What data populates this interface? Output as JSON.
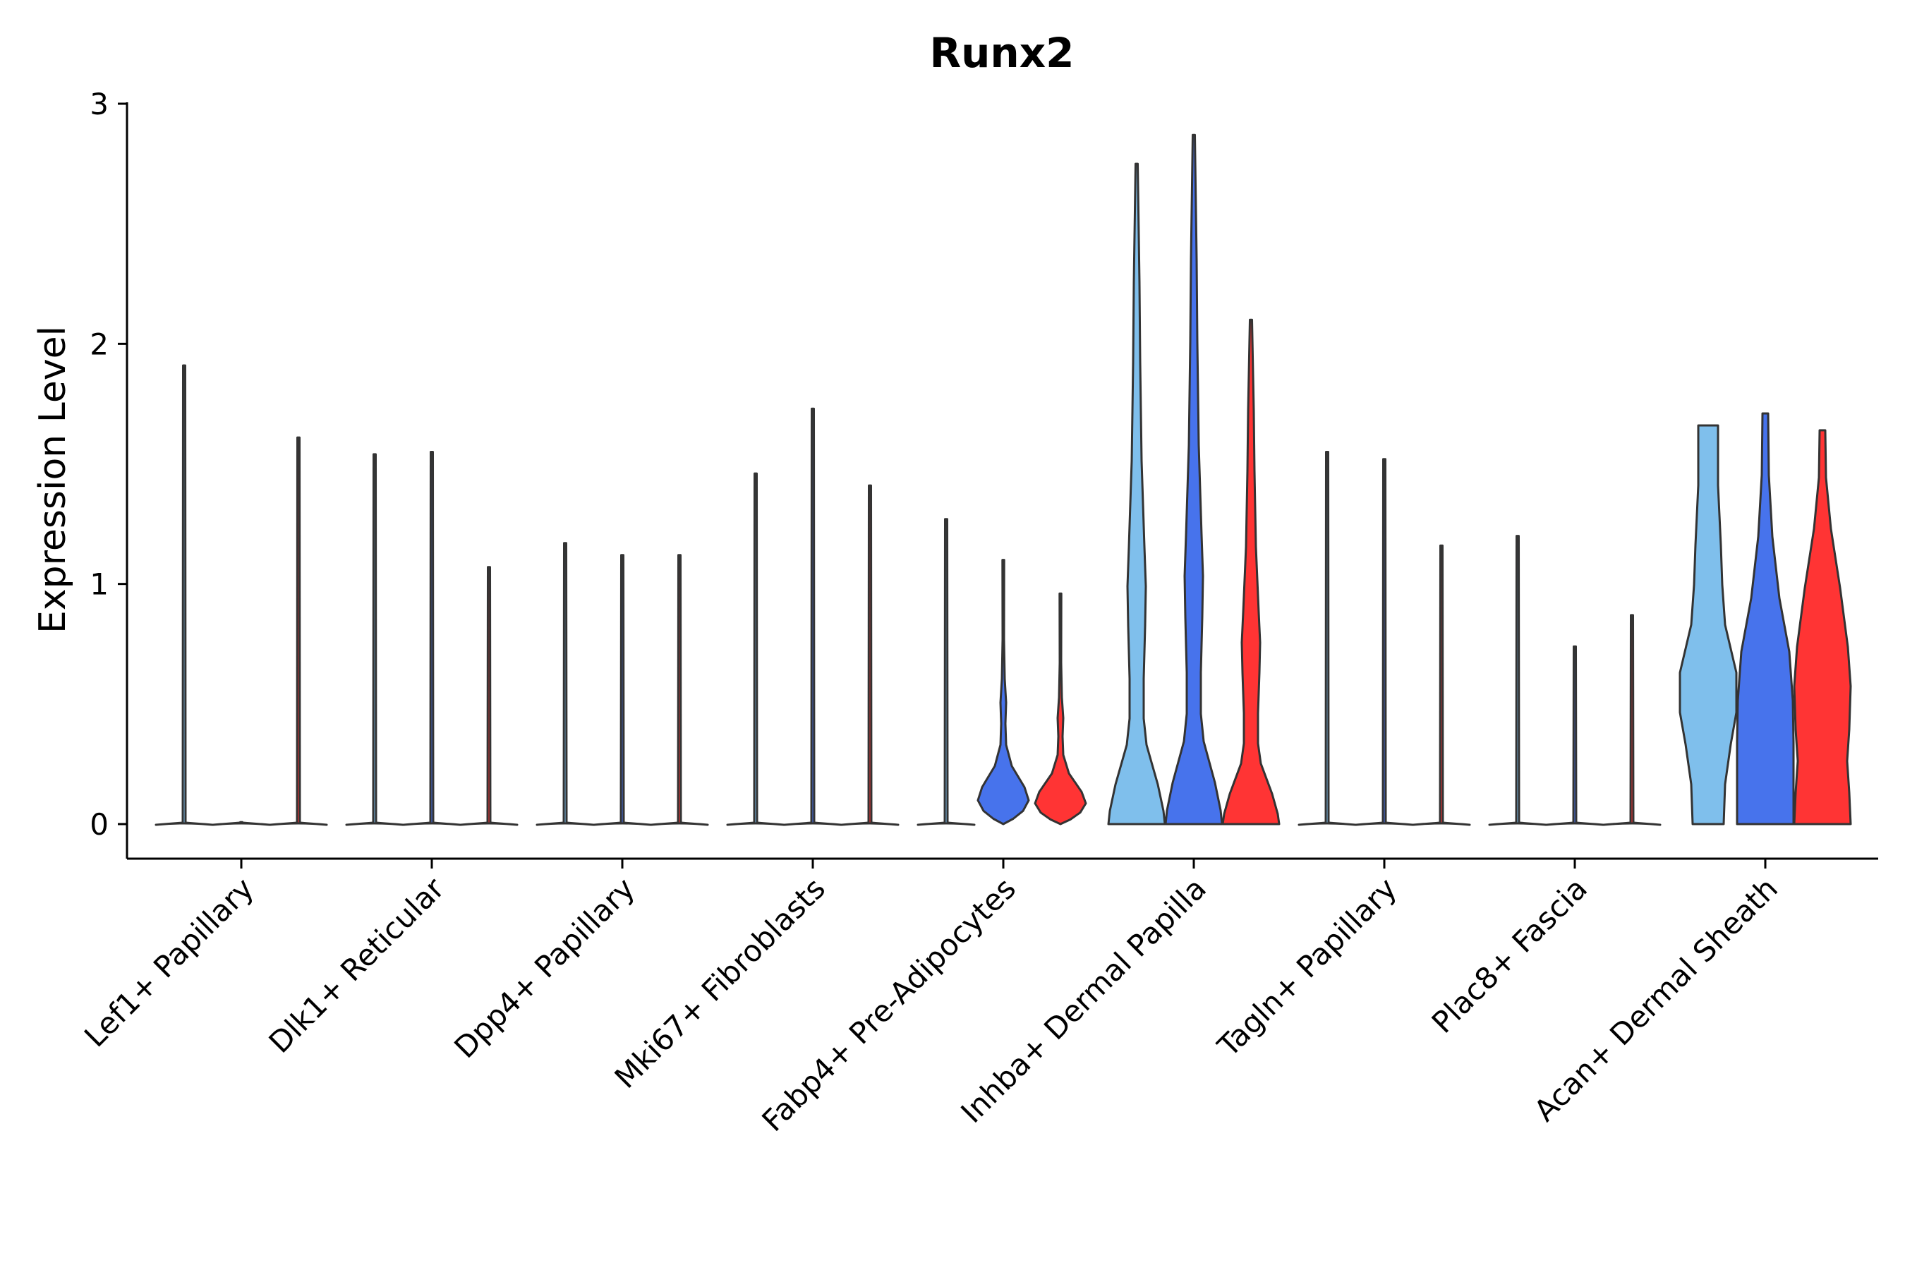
{
  "chart_data": {
    "type": "violin",
    "title": "Runx2",
    "xlabel": "",
    "ylabel": "Expression Level",
    "ylim": [
      -0.14,
      3.0
    ],
    "yticks": [
      0,
      1,
      2,
      3
    ],
    "grid": false,
    "legend": "none",
    "categories": [
      "Lef1+ Papillary",
      "Dlk1+ Reticular",
      "Dpp4+ Papillary",
      "Mki67+ Fibroblasts",
      "Fabp4+ Pre-Adipocytes",
      "Inhba+ Dermal Papilla",
      "Tagln+ Papillary",
      "Plac8+ Fascia",
      "Acan+ Dermal Sheath"
    ],
    "groups": [
      {
        "color": "#7fbfec"
      },
      {
        "color": "#4773ec"
      },
      {
        "color": "#ff3434"
      }
    ],
    "violins": [
      [
        {
          "max": 1.91,
          "profile": "spike"
        },
        {
          "max": 0.0,
          "profile": "spike"
        },
        {
          "max": 1.61,
          "profile": "spike"
        }
      ],
      [
        {
          "max": 1.54,
          "profile": "spike"
        },
        {
          "max": 1.55,
          "profile": "spike"
        },
        {
          "max": 1.07,
          "profile": "spike"
        }
      ],
      [
        {
          "max": 1.17,
          "profile": "spike"
        },
        {
          "max": 1.12,
          "profile": "spike"
        },
        {
          "max": 1.12,
          "profile": "spike"
        }
      ],
      [
        {
          "max": 1.46,
          "profile": "spike"
        },
        {
          "max": 1.73,
          "profile": "spike"
        },
        {
          "max": 1.41,
          "profile": "spike"
        }
      ],
      [
        {
          "max": 1.27,
          "profile": "spike"
        },
        {
          "max": 1.1,
          "profile": "small"
        },
        {
          "max": 0.96,
          "profile": "small"
        }
      ],
      [
        {
          "max": 2.75,
          "profile": "tall"
        },
        {
          "max": 2.87,
          "profile": "tall"
        },
        {
          "max": 2.1,
          "profile": "tall"
        }
      ],
      [
        {
          "max": 1.55,
          "profile": "spike"
        },
        {
          "max": 1.52,
          "profile": "spike"
        },
        {
          "max": 1.16,
          "profile": "spike"
        }
      ],
      [
        {
          "max": 1.2,
          "profile": "spike"
        },
        {
          "max": 0.74,
          "profile": "spike"
        },
        {
          "max": 0.87,
          "profile": "spike"
        }
      ],
      [
        {
          "max": 1.66,
          "profile": "wide-a"
        },
        {
          "max": 1.71,
          "profile": "wide-b"
        },
        {
          "max": 1.64,
          "profile": "wide-c"
        }
      ]
    ]
  }
}
